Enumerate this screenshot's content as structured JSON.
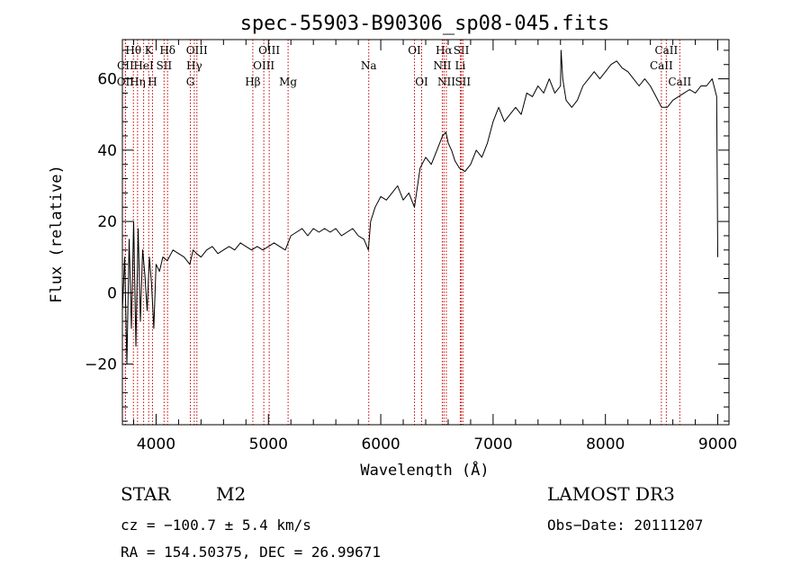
{
  "chart_data": {
    "type": "line",
    "title": "spec-55903-B90306_sp08-045.fits",
    "xlabel": "Wavelength (Å)",
    "ylabel": "Flux (relative)",
    "xlim": [
      3700,
      9100
    ],
    "ylim": [
      -37,
      71
    ],
    "xticks": [
      4000,
      5000,
      6000,
      7000,
      8000,
      9000
    ],
    "xtick_labels": [
      "4000",
      "5000",
      "6000",
      "7000",
      "8000",
      "9000"
    ],
    "yticks": [
      -20,
      0,
      20,
      40,
      60
    ],
    "ytick_labels": [
      "−20",
      "0",
      "20",
      "40",
      "60"
    ],
    "grid": false,
    "series": [
      {
        "name": "flux",
        "color": "#000000",
        "x": [
          3700,
          3720,
          3740,
          3760,
          3780,
          3800,
          3820,
          3840,
          3860,
          3880,
          3900,
          3920,
          3940,
          3960,
          3980,
          4000,
          4030,
          4060,
          4100,
          4150,
          4200,
          4250,
          4300,
          4330,
          4360,
          4400,
          4450,
          4500,
          4550,
          4600,
          4650,
          4700,
          4750,
          4800,
          4850,
          4900,
          4950,
          5000,
          5050,
          5100,
          5150,
          5200,
          5250,
          5300,
          5350,
          5400,
          5450,
          5500,
          5550,
          5600,
          5650,
          5700,
          5750,
          5800,
          5850,
          5890,
          5910,
          5950,
          6000,
          6050,
          6100,
          6150,
          6200,
          6250,
          6300,
          6350,
          6400,
          6450,
          6500,
          6550,
          6580,
          6600,
          6630,
          6660,
          6700,
          6750,
          6800,
          6850,
          6900,
          6950,
          7000,
          7050,
          7100,
          7150,
          7200,
          7250,
          7300,
          7350,
          7400,
          7450,
          7500,
          7550,
          7600,
          7605,
          7620,
          7650,
          7700,
          7750,
          7800,
          7850,
          7900,
          7950,
          8000,
          8050,
          8100,
          8150,
          8200,
          8250,
          8300,
          8350,
          8400,
          8450,
          8500,
          8550,
          8600,
          8650,
          8700,
          8750,
          8800,
          8850,
          8900,
          8950,
          8990,
          9000
        ],
        "y": [
          -5,
          10,
          -20,
          15,
          -10,
          20,
          -15,
          18,
          -8,
          12,
          5,
          -5,
          10,
          2,
          -10,
          8,
          6,
          10,
          9,
          12,
          11,
          10,
          8,
          12,
          11,
          10,
          12,
          13,
          11,
          12,
          13,
          12,
          14,
          13,
          12,
          13,
          12,
          13,
          14,
          13,
          12,
          16,
          17,
          18,
          16,
          18,
          17,
          18,
          17,
          18,
          16,
          17,
          18,
          16,
          15,
          12,
          20,
          24,
          27,
          26,
          28,
          30,
          26,
          28,
          24,
          35,
          38,
          36,
          40,
          44,
          45,
          42,
          40,
          37,
          35,
          34,
          36,
          40,
          38,
          42,
          48,
          52,
          48,
          50,
          52,
          50,
          56,
          55,
          58,
          56,
          60,
          56,
          58,
          68,
          60,
          54,
          52,
          54,
          58,
          60,
          62,
          60,
          62,
          64,
          65,
          63,
          62,
          60,
          58,
          60,
          58,
          55,
          52,
          52,
          54,
          55,
          56,
          57,
          56,
          58,
          58,
          60,
          55,
          10
        ]
      }
    ],
    "line_markers": [
      {
        "label": "CII",
        "x": 3727,
        "row": 2
      },
      {
        "label": "OII",
        "x": 3727,
        "row": 3
      },
      {
        "label": "Hθ",
        "x": 3798,
        "row": 1
      },
      {
        "label": "Hη",
        "x": 3835,
        "row": 3
      },
      {
        "label": "HeI",
        "x": 3889,
        "row": 2
      },
      {
        "label": "K",
        "x": 3934,
        "row": 1
      },
      {
        "label": "H",
        "x": 3968,
        "row": 3
      },
      {
        "label": "SII",
        "x": 4071,
        "row": 2
      },
      {
        "label": "Hδ",
        "x": 4102,
        "row": 1
      },
      {
        "label": "OIII",
        "x": 4363,
        "row": 1
      },
      {
        "label": "Hγ",
        "x": 4340,
        "row": 2
      },
      {
        "label": "G",
        "x": 4305,
        "row": 3
      },
      {
        "label": "Hβ",
        "x": 4861,
        "row": 3
      },
      {
        "label": "OIII",
        "x": 4959,
        "row": 2
      },
      {
        "label": "OIII",
        "x": 5007,
        "row": 1
      },
      {
        "label": "Mg",
        "x": 5175,
        "row": 3
      },
      {
        "label": "Na",
        "x": 5893,
        "row": 2
      },
      {
        "label": "OI",
        "x": 6300,
        "row": 1
      },
      {
        "label": "OI",
        "x": 6364,
        "row": 3
      },
      {
        "label": "Hα",
        "x": 6563,
        "row": 1
      },
      {
        "label": "NII",
        "x": 6548,
        "row": 2
      },
      {
        "label": "NII",
        "x": 6584,
        "row": 3
      },
      {
        "label": "SII",
        "x": 6717,
        "row": 1
      },
      {
        "label": "Li",
        "x": 6708,
        "row": 2
      },
      {
        "label": "SII",
        "x": 6731,
        "row": 3
      },
      {
        "label": "CaII",
        "x": 8542,
        "row": 1
      },
      {
        "label": "CaII",
        "x": 8498,
        "row": 2
      },
      {
        "label": "CaII",
        "x": 8662,
        "row": 3
      }
    ]
  },
  "info": {
    "object_class": "STAR",
    "subclass": "M2",
    "survey": "LAMOST DR3",
    "redshift": "cz = −100.7 ± 5.4 km/s",
    "obs_date": "Obs−Date: 20111207",
    "coordinates": "RA = 154.50375, DEC =  26.99671"
  }
}
